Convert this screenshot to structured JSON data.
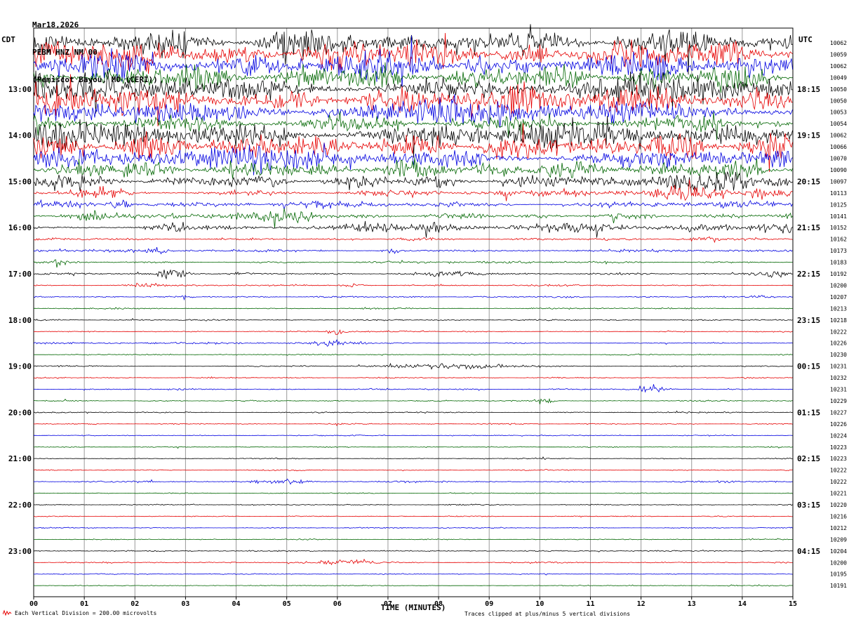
{
  "header": {
    "date": "Mar18,2026",
    "station_line": "PEBM HNZ NM 00",
    "location_line": "(Pemiscot Bayou, MO (CERI))"
  },
  "axes": {
    "left_timezone": "CDT",
    "right_timezone": "UTC",
    "x_label": "TIME (MINUTES)",
    "x_ticks": [
      "00",
      "01",
      "02",
      "03",
      "04",
      "05",
      "06",
      "07",
      "08",
      "09",
      "10",
      "11",
      "12",
      "13",
      "14",
      "15"
    ]
  },
  "footer": {
    "scale_note": "Each Vertical Division =  200.00 microvolts",
    "clip_note": "Traces clipped at plus/minus 5 vertical divisions"
  },
  "palette": {
    "black": "#000000",
    "red": "#e60000",
    "blue": "#0000e0",
    "green": "#006600"
  },
  "chart_data": {
    "type": "line",
    "subtype": "helicorder-seismogram",
    "station": "PEBM HNZ NM 00",
    "date": "Mar18,2026",
    "minutes_per_row": 15,
    "x_range": [
      0,
      15
    ],
    "clip_divisions": 5,
    "microvolts_per_division": 200.0,
    "rows": [
      {
        "cdt": "",
        "utc": "",
        "count": "10062",
        "color": "black",
        "amp": 24,
        "events": []
      },
      {
        "cdt": "",
        "utc": "",
        "count": "10059",
        "color": "red",
        "amp": 27,
        "events": []
      },
      {
        "cdt": "",
        "utc": "",
        "count": "10062",
        "color": "blue",
        "amp": 25,
        "events": []
      },
      {
        "cdt": "",
        "utc": "",
        "count": "10049",
        "color": "green",
        "amp": 23,
        "events": []
      },
      {
        "cdt": "13:00",
        "utc": "18:15",
        "count": "10050",
        "color": "black",
        "amp": 28,
        "events": []
      },
      {
        "cdt": "",
        "utc": "",
        "count": "10050",
        "color": "red",
        "amp": 29,
        "events": []
      },
      {
        "cdt": "",
        "utc": "",
        "count": "10053",
        "color": "blue",
        "amp": 26,
        "events": []
      },
      {
        "cdt": "",
        "utc": "",
        "count": "10054",
        "color": "green",
        "amp": 24,
        "events": []
      },
      {
        "cdt": "14:00",
        "utc": "19:15",
        "count": "10062",
        "color": "black",
        "amp": 26,
        "events": []
      },
      {
        "cdt": "",
        "utc": "",
        "count": "10066",
        "color": "red",
        "amp": 24,
        "events": []
      },
      {
        "cdt": "",
        "utc": "",
        "count": "10070",
        "color": "blue",
        "amp": 21,
        "events": []
      },
      {
        "cdt": "",
        "utc": "",
        "count": "10090",
        "color": "green",
        "amp": 18,
        "events": []
      },
      {
        "cdt": "15:00",
        "utc": "20:15",
        "count": "10097",
        "color": "black",
        "amp": 12,
        "events": [
          {
            "m": 0.8,
            "a": 6,
            "w": 0.5
          },
          {
            "m": 12.6,
            "a": 9,
            "w": 0.4
          },
          {
            "m": 13.8,
            "a": 9,
            "w": 0.4
          }
        ]
      },
      {
        "cdt": "",
        "utc": "",
        "count": "10113",
        "color": "red",
        "amp": 7,
        "events": [
          {
            "m": 1.3,
            "a": 8,
            "w": 0.3
          },
          {
            "m": 13.0,
            "a": 12,
            "w": 0.25
          },
          {
            "m": 14.5,
            "a": 6,
            "w": 0.2
          }
        ]
      },
      {
        "cdt": "",
        "utc": "",
        "count": "10125",
        "color": "blue",
        "amp": 5.5,
        "events": [
          {
            "m": 0.9,
            "a": 6,
            "w": 0.2
          },
          {
            "m": 1.7,
            "a": 14,
            "w": 0.12
          }
        ]
      },
      {
        "cdt": "",
        "utc": "",
        "count": "10141",
        "color": "green",
        "amp": 5,
        "events": [
          {
            "m": 1.0,
            "a": 6,
            "w": 0.3
          },
          {
            "m": 4.3,
            "a": 7,
            "w": 0.5
          },
          {
            "m": 5.2,
            "a": 5,
            "w": 0.3
          }
        ]
      },
      {
        "cdt": "16:00",
        "utc": "21:15",
        "count": "10152",
        "color": "black",
        "amp": 4.5,
        "events": [
          {
            "m": 2.8,
            "a": 6,
            "w": 0.3
          },
          {
            "m": 6.4,
            "a": 7,
            "w": 0.4
          },
          {
            "m": 7.9,
            "a": 5,
            "w": 0.3
          },
          {
            "m": 10.6,
            "a": 6,
            "w": 0.6
          },
          {
            "m": 13.4,
            "a": 6,
            "w": 0.5
          },
          {
            "m": 14.7,
            "a": 7,
            "w": 0.3
          }
        ]
      },
      {
        "cdt": "",
        "utc": "",
        "count": "10162",
        "color": "red",
        "amp": 2.4,
        "events": [
          {
            "m": 13.2,
            "a": 3,
            "w": 0.3
          }
        ]
      },
      {
        "cdt": "",
        "utc": "",
        "count": "10173",
        "color": "blue",
        "amp": 2.4,
        "events": [
          {
            "m": 2.4,
            "a": 6,
            "w": 0.15
          },
          {
            "m": 7.1,
            "a": 4,
            "w": 0.12
          }
        ]
      },
      {
        "cdt": "",
        "utc": "",
        "count": "10183",
        "color": "green",
        "amp": 2.1,
        "events": [
          {
            "m": 0.55,
            "a": 5,
            "w": 0.15
          }
        ]
      },
      {
        "cdt": "17:00",
        "utc": "22:15",
        "count": "10192",
        "color": "black",
        "amp": 2.0,
        "events": [
          {
            "m": 2.75,
            "a": 10,
            "w": 0.2
          },
          {
            "m": 8.3,
            "a": 3,
            "w": 0.4
          },
          {
            "m": 14.6,
            "a": 5,
            "w": 0.3
          }
        ]
      },
      {
        "cdt": "",
        "utc": "",
        "count": "10200",
        "color": "red",
        "amp": 1.7,
        "events": [
          {
            "m": 2.2,
            "a": 3,
            "w": 0.2
          },
          {
            "m": 6.3,
            "a": 2.5,
            "w": 0.2
          }
        ]
      },
      {
        "cdt": "",
        "utc": "",
        "count": "10207",
        "color": "blue",
        "amp": 1.6,
        "events": [
          {
            "m": 14.3,
            "a": 3,
            "w": 0.15
          }
        ]
      },
      {
        "cdt": "",
        "utc": "",
        "count": "10213",
        "color": "green",
        "amp": 1.4,
        "events": []
      },
      {
        "cdt": "18:00",
        "utc": "23:15",
        "count": "10218",
        "color": "black",
        "amp": 1.4,
        "events": []
      },
      {
        "cdt": "",
        "utc": "",
        "count": "10222",
        "color": "red",
        "amp": 1.3,
        "events": [
          {
            "m": 6.0,
            "a": 8,
            "w": 0.12
          }
        ]
      },
      {
        "cdt": "",
        "utc": "",
        "count": "10226",
        "color": "blue",
        "amp": 1.6,
        "events": [
          {
            "m": 5.85,
            "a": 4,
            "w": 0.35
          }
        ]
      },
      {
        "cdt": "",
        "utc": "",
        "count": "10230",
        "color": "green",
        "amp": 1.2,
        "events": []
      },
      {
        "cdt": "19:00",
        "utc": "00:15",
        "count": "10231",
        "color": "black",
        "amp": 1.6,
        "events": [
          {
            "m": 7.6,
            "a": 2.5,
            "w": 0.5
          },
          {
            "m": 8.6,
            "a": 2.5,
            "w": 0.5
          }
        ]
      },
      {
        "cdt": "",
        "utc": "",
        "count": "10232",
        "color": "red",
        "amp": 1.2,
        "events": []
      },
      {
        "cdt": "",
        "utc": "",
        "count": "10231",
        "color": "blue",
        "amp": 1.5,
        "events": [
          {
            "m": 12.2,
            "a": 5,
            "w": 0.15
          }
        ]
      },
      {
        "cdt": "",
        "utc": "",
        "count": "10229",
        "color": "green",
        "amp": 1.2,
        "events": [
          {
            "m": 10.1,
            "a": 6,
            "w": 0.12
          }
        ]
      },
      {
        "cdt": "20:00",
        "utc": "01:15",
        "count": "10227",
        "color": "black",
        "amp": 1.3,
        "events": []
      },
      {
        "cdt": "",
        "utc": "",
        "count": "10226",
        "color": "red",
        "amp": 1.1,
        "events": []
      },
      {
        "cdt": "",
        "utc": "",
        "count": "10224",
        "color": "blue",
        "amp": 1.1,
        "events": []
      },
      {
        "cdt": "",
        "utc": "",
        "count": "10223",
        "color": "green",
        "amp": 1.0,
        "events": []
      },
      {
        "cdt": "21:00",
        "utc": "02:15",
        "count": "10223",
        "color": "black",
        "amp": 1.0,
        "events": []
      },
      {
        "cdt": "",
        "utc": "",
        "count": "10222",
        "color": "red",
        "amp": 1.2,
        "events": []
      },
      {
        "cdt": "",
        "utc": "",
        "count": "10222",
        "color": "blue",
        "amp": 1.6,
        "events": [
          {
            "m": 4.9,
            "a": 4,
            "w": 0.4
          }
        ]
      },
      {
        "cdt": "",
        "utc": "",
        "count": "10221",
        "color": "green",
        "amp": 1.0,
        "events": []
      },
      {
        "cdt": "22:00",
        "utc": "03:15",
        "count": "10220",
        "color": "black",
        "amp": 1.1,
        "events": []
      },
      {
        "cdt": "",
        "utc": "",
        "count": "10216",
        "color": "red",
        "amp": 1.0,
        "events": []
      },
      {
        "cdt": "",
        "utc": "",
        "count": "10212",
        "color": "blue",
        "amp": 1.0,
        "events": []
      },
      {
        "cdt": "",
        "utc": "",
        "count": "10209",
        "color": "green",
        "amp": 1.0,
        "events": []
      },
      {
        "cdt": "23:00",
        "utc": "04:15",
        "count": "10204",
        "color": "black",
        "amp": 1.0,
        "events": []
      },
      {
        "cdt": "",
        "utc": "",
        "count": "10200",
        "color": "red",
        "amp": 1.4,
        "events": [
          {
            "m": 6.1,
            "a": 4,
            "w": 0.5
          }
        ]
      },
      {
        "cdt": "",
        "utc": "",
        "count": "10195",
        "color": "blue",
        "amp": 1.0,
        "events": []
      },
      {
        "cdt": "",
        "utc": "",
        "count": "10191",
        "color": "green",
        "amp": 1.0,
        "events": []
      }
    ]
  }
}
